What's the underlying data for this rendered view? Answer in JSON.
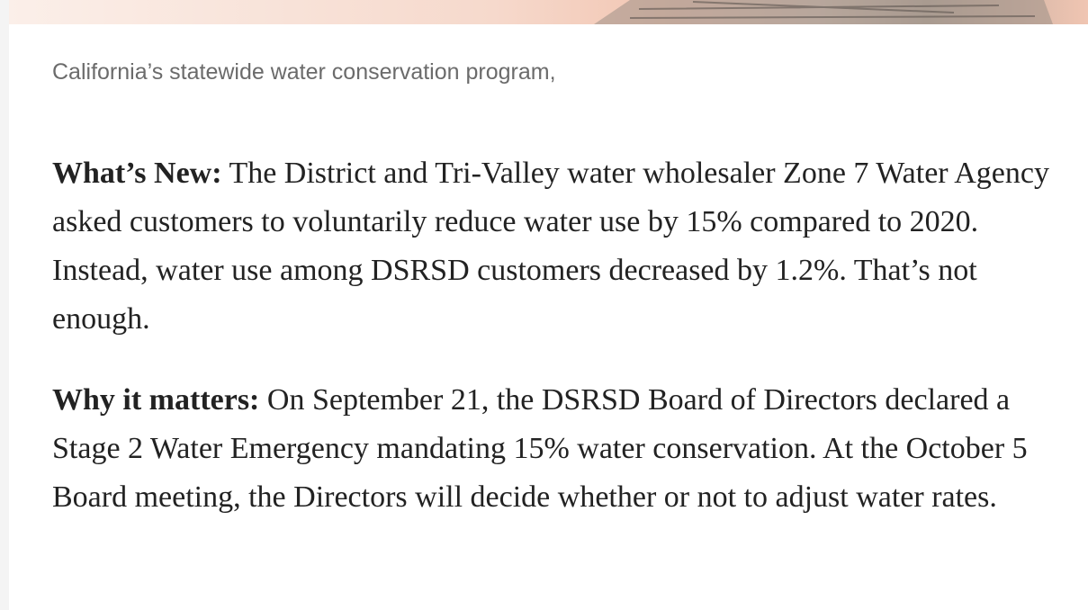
{
  "caption": "California’s statewide water conservation program,",
  "paragraphs": [
    {
      "label": "What’s New:",
      "text": "The District and Tri-Valley water wholesaler Zone 7 Water Agency asked customers to voluntarily reduce water use by 15% compared to 2020. Instead, water use among DSRSD customers decreased by 1.2%. That’s not enough."
    },
    {
      "label": "Why it matters:",
      "text": "On September 21, the DSRSD Board of Directors declared a Stage 2 Water Emergency mandating 15% water conservation. At the October 5 Board meeting, the Directors will decide whether or not to adjust water rates."
    }
  ]
}
